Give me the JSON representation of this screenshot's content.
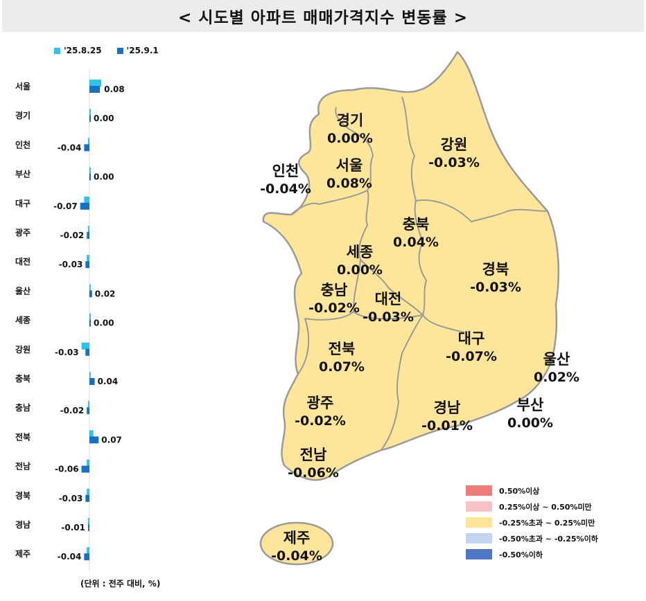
{
  "title": "< 시도별 아파트 매매가격지수 변동률 >",
  "unit_note": "(단위 : 전주 대비, %)",
  "colors": {
    "prev_week": "#29c5ee",
    "this_week": "#1570c8",
    "map_fill": "#fde699",
    "map_stroke": "#9a9a9a"
  },
  "chart_data": {
    "type": "bar",
    "orientation": "horizontal",
    "categories": [
      "서울",
      "경기",
      "인천",
      "부산",
      "대구",
      "광주",
      "대전",
      "울산",
      "세종",
      "강원",
      "충북",
      "충남",
      "전북",
      "전남",
      "경북",
      "경남",
      "제주"
    ],
    "series": [
      {
        "name": "'25.8.25",
        "values": [
          0.09,
          0.01,
          -0.01,
          0.0,
          -0.04,
          -0.01,
          -0.02,
          0.01,
          0.01,
          -0.06,
          0.0,
          -0.01,
          0.03,
          -0.02,
          -0.02,
          -0.01,
          -0.02
        ]
      },
      {
        "name": "'25.9.1",
        "values": [
          0.08,
          0.0,
          -0.04,
          0.0,
          -0.07,
          -0.02,
          -0.03,
          0.02,
          0.0,
          -0.03,
          0.04,
          -0.02,
          0.07,
          -0.06,
          -0.03,
          -0.01,
          -0.04
        ]
      }
    ],
    "data_labels": [
      "0.08",
      "0.00",
      "-0.04",
      "0.00",
      "-0.07",
      "-0.02",
      "-0.03",
      "0.02",
      "0.00",
      "-0.03",
      "0.04",
      "-0.02",
      "0.07",
      "-0.06",
      "-0.03",
      "-0.01",
      "-0.04"
    ]
  },
  "map_regions": [
    {
      "name": "경기",
      "value": "0.00%"
    },
    {
      "name": "강원",
      "value": "-0.03%"
    },
    {
      "name": "인천",
      "value": "-0.04%"
    },
    {
      "name": "서울",
      "value": "0.08%"
    },
    {
      "name": "충북",
      "value": "0.04%"
    },
    {
      "name": "세종",
      "value": "0.00%"
    },
    {
      "name": "경북",
      "value": "-0.03%"
    },
    {
      "name": "충남",
      "value": "-0.02%"
    },
    {
      "name": "대전",
      "value": "-0.03%"
    },
    {
      "name": "전북",
      "value": "0.07%"
    },
    {
      "name": "대구",
      "value": "-0.07%"
    },
    {
      "name": "울산",
      "value": "0.02%"
    },
    {
      "name": "광주",
      "value": "-0.02%"
    },
    {
      "name": "경남",
      "value": "-0.01%"
    },
    {
      "name": "부산",
      "value": "0.00%"
    },
    {
      "name": "전남",
      "value": "-0.06%"
    },
    {
      "name": "제주",
      "value": "-0.04%"
    }
  ],
  "color_legend": [
    {
      "label": "0.50%이상",
      "color": "#f07b7b"
    },
    {
      "label": "0.25%이상 ~ 0.50%미만",
      "color": "#f8c2c4"
    },
    {
      "label": "-0.25%초과 ~ 0.25%미만",
      "color": "#fde699"
    },
    {
      "label": "-0.50%초과 ~ -0.25%이하",
      "color": "#c3d4ee"
    },
    {
      "label": "-0.50%이하",
      "color": "#4d76c4"
    }
  ]
}
